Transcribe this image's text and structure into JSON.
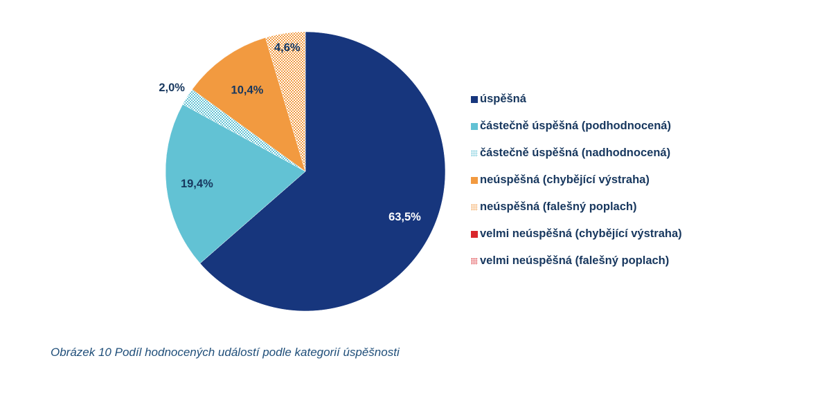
{
  "chart_data": {
    "type": "pie",
    "series": [
      {
        "name": "úspěšná",
        "value": 63.5,
        "label": "63,5%",
        "color": "#17367d",
        "pattern": "solid"
      },
      {
        "name": "částečně úspěšná (podhodnocená)",
        "value": 19.4,
        "label": "19,4%",
        "color": "#62c2d4",
        "pattern": "solid"
      },
      {
        "name": "částečně úspěšná (nadhodnocená)",
        "value": 2.0,
        "label": "2,0%",
        "color": "#62c2d4",
        "pattern": "dots"
      },
      {
        "name": "neúspěšná (chybějící výstraha)",
        "value": 10.4,
        "label": "10,4%",
        "color": "#f29a40",
        "pattern": "solid"
      },
      {
        "name": "neúspěšná (falešný poplach)",
        "value": 4.6,
        "label": "4,6%",
        "color": "#f29a40",
        "pattern": "dots"
      },
      {
        "name": "velmi neúspěšná (chybějící výstraha)",
        "value": 0,
        "label": "",
        "color": "#d9262b",
        "pattern": "solid"
      },
      {
        "name": "velmi neúspěšná (falešný poplach)",
        "value": 0,
        "label": "",
        "color": "#d9262b",
        "pattern": "dots"
      }
    ],
    "title": "",
    "legend_position": "right"
  },
  "caption": "Obrázek 10 Podíl hodnocených událostí podle kategorií úspěšnosti",
  "colors": {
    "text": "#17375e",
    "label_on_dark": "#ffffff",
    "caption": "#1f4e79"
  }
}
